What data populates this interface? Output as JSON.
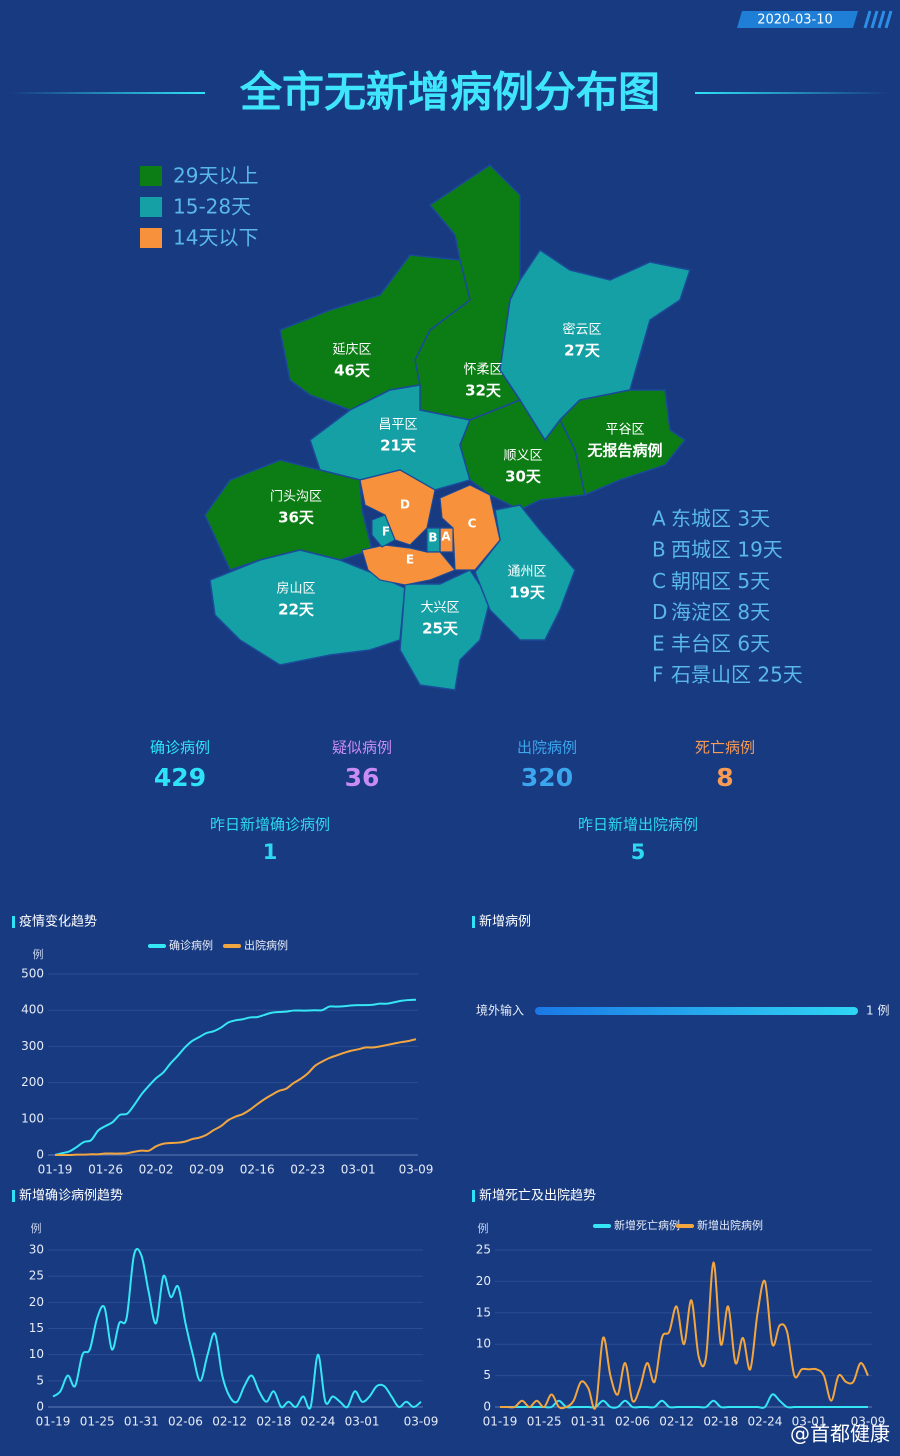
{
  "date": "2020-03-10",
  "title": "全市无新增病例分布图",
  "watermark": "@首都健康",
  "map": {
    "legend": [
      {
        "label": "29天以上",
        "color": "#0b7d14"
      },
      {
        "label": "15-28天",
        "color": "#14a0a4"
      },
      {
        "label": "14天以下",
        "color": "#f7913b"
      }
    ],
    "districts": [
      {
        "name": "怀柔区",
        "days": "32天",
        "color": "#0b7d14"
      },
      {
        "name": "延庆区",
        "days": "46天",
        "color": "#0b7d14"
      },
      {
        "name": "密云区",
        "days": "27天",
        "color": "#14a0a4"
      },
      {
        "name": "平谷区",
        "days": "无报告病例",
        "color": "#0b7d14"
      },
      {
        "name": "昌平区",
        "days": "21天",
        "color": "#14a0a4"
      },
      {
        "name": "顺义区",
        "days": "30天",
        "color": "#0b7d14"
      },
      {
        "name": "门头沟区",
        "days": "36天",
        "color": "#0b7d14"
      },
      {
        "name": "房山区",
        "days": "22天",
        "color": "#14a0a4"
      },
      {
        "name": "大兴区",
        "days": "25天",
        "color": "#14a0a4"
      },
      {
        "name": "通州区",
        "days": "19天",
        "color": "#14a0a4"
      }
    ],
    "key": [
      {
        "letter": "A",
        "text": "东城区 3天",
        "color": "#f7913b"
      },
      {
        "letter": "B",
        "text": "西城区 19天",
        "color": "#14a0a4"
      },
      {
        "letter": "C",
        "text": "朝阳区 5天",
        "color": "#f7913b"
      },
      {
        "letter": "D",
        "text": "海淀区 8天",
        "color": "#f7913b"
      },
      {
        "letter": "E",
        "text": "丰台区 6天",
        "color": "#f7913b"
      },
      {
        "letter": "F",
        "text": "石景山区 25天",
        "color": "#14a0a4"
      }
    ]
  },
  "stats": [
    {
      "label": "确诊病例",
      "value": 429,
      "color": "#2ee3f7"
    },
    {
      "label": "疑似病例",
      "value": 36,
      "color": "#c98cf7"
    },
    {
      "label": "出院病例",
      "value": 320,
      "color": "#3ba6ee"
    },
    {
      "label": "死亡病例",
      "value": 8,
      "color": "#f79b55"
    },
    {
      "label": "昨日新增确诊病例",
      "value": 1,
      "color": "#2ed8f2"
    },
    {
      "label": "昨日新增出院病例",
      "value": 5,
      "color": "#2ed8f2"
    }
  ],
  "chart_data": [
    {
      "type": "line",
      "title": "疫情变化趋势",
      "y_label": "例",
      "ylim": [
        0,
        500
      ],
      "yticks": [
        0,
        100,
        200,
        300,
        400,
        500
      ],
      "categories": [
        "01-19",
        null,
        null,
        null,
        null,
        null,
        null,
        "01-26",
        null,
        null,
        null,
        null,
        null,
        null,
        "02-02",
        null,
        null,
        null,
        null,
        null,
        null,
        "02-09",
        null,
        null,
        null,
        null,
        null,
        null,
        "02-16",
        null,
        null,
        null,
        null,
        null,
        null,
        "02-23",
        null,
        null,
        null,
        null,
        null,
        null,
        "03-01",
        null,
        null,
        null,
        null,
        null,
        null,
        null,
        "03-09"
      ],
      "series": [
        {
          "name": "确诊病例",
          "color": "#35e6f5",
          "values": [
            0,
            5,
            10,
            22,
            36,
            41,
            68,
            80,
            91,
            111,
            114,
            139,
            168,
            191,
            212,
            228,
            253,
            274,
            297,
            315,
            326,
            337,
            342,
            352,
            366,
            372,
            375,
            380,
            381,
            387,
            393,
            395,
            396,
            399,
            399,
            399,
            400,
            400,
            410,
            410,
            411,
            413,
            414,
            414,
            415,
            418,
            418,
            422,
            426,
            428,
            429
          ]
        },
        {
          "name": "出院病例",
          "color": "#f2a640",
          "values": [
            0,
            0,
            0,
            1,
            1,
            2,
            2,
            4,
            4,
            4,
            5,
            9,
            12,
            12,
            24,
            31,
            33,
            34,
            37,
            44,
            48,
            56,
            69,
            80,
            96,
            106,
            113,
            125,
            140,
            154,
            166,
            177,
            183,
            198,
            210,
            225,
            246,
            258,
            268,
            275,
            282,
            288,
            292,
            297,
            297,
            300,
            304,
            308,
            312,
            315,
            320
          ]
        }
      ]
    },
    {
      "type": "bar",
      "title": "新增病例",
      "categories": [
        "境外输入"
      ],
      "values": [
        1
      ],
      "value_labels": [
        "1 例"
      ]
    },
    {
      "type": "line",
      "title": "新增确诊病例趋势",
      "y_label": "例",
      "ylim": [
        0,
        30
      ],
      "yticks": [
        0,
        5,
        10,
        15,
        20,
        25,
        30
      ],
      "categories": [
        "01-19",
        null,
        null,
        null,
        null,
        null,
        "01-25",
        null,
        null,
        null,
        null,
        null,
        "01-31",
        null,
        null,
        null,
        null,
        null,
        "02-06",
        null,
        null,
        null,
        null,
        null,
        "02-12",
        null,
        null,
        null,
        null,
        null,
        "02-18",
        null,
        null,
        null,
        null,
        null,
        "02-24",
        null,
        null,
        null,
        null,
        null,
        "03-01",
        null,
        null,
        null,
        null,
        null,
        null,
        null,
        "03-09"
      ],
      "series": [
        {
          "name": "新增确诊病例",
          "color": "#35e6f5",
          "values": [
            2,
            3,
            6,
            4,
            10,
            11,
            17,
            19,
            11,
            16,
            17,
            29,
            29,
            22,
            16,
            25,
            21,
            23,
            16,
            10,
            5,
            10,
            14,
            6,
            2,
            1,
            4,
            6,
            3,
            1,
            3,
            0,
            1,
            0,
            2,
            0,
            10,
            1,
            2,
            1,
            0,
            3,
            1,
            2,
            4,
            4,
            2,
            0,
            1,
            0,
            1
          ]
        }
      ]
    },
    {
      "type": "line",
      "title": "新增死亡及出院趋势",
      "y_label": "例",
      "ylim": [
        0,
        25
      ],
      "yticks": [
        0,
        5,
        10,
        15,
        20,
        25
      ],
      "categories": [
        "01-19",
        null,
        null,
        null,
        null,
        null,
        "01-25",
        null,
        null,
        null,
        null,
        null,
        "01-31",
        null,
        null,
        null,
        null,
        null,
        "02-06",
        null,
        null,
        null,
        null,
        null,
        "02-12",
        null,
        null,
        null,
        null,
        null,
        "02-18",
        null,
        null,
        null,
        null,
        null,
        "02-24",
        null,
        null,
        null,
        null,
        null,
        "03-01",
        null,
        null,
        null,
        null,
        null,
        null,
        null,
        "03-09"
      ],
      "legend": true,
      "series": [
        {
          "name": "新增死亡病例",
          "color": "#35e6f5",
          "values": [
            0,
            0,
            0,
            0,
            0,
            0,
            0,
            0,
            1,
            0,
            0,
            0,
            0,
            0,
            1,
            0,
            0,
            1,
            0,
            0,
            0,
            0,
            1,
            0,
            0,
            0,
            0,
            0,
            0,
            1,
            0,
            0,
            0,
            0,
            0,
            0,
            0,
            2,
            1,
            0,
            0,
            0,
            0,
            0,
            0,
            0,
            0,
            0,
            0,
            0,
            0
          ]
        },
        {
          "name": "新增出院病例",
          "color": "#f2a640",
          "values": [
            0,
            0,
            0,
            1,
            0,
            1,
            0,
            2,
            0,
            0,
            1,
            4,
            3,
            0,
            11,
            5,
            2,
            7,
            1,
            3,
            7,
            4,
            11,
            12,
            16,
            10,
            17,
            8,
            8,
            23,
            10,
            16,
            7,
            11,
            6,
            15,
            20,
            10,
            13,
            12,
            5,
            6,
            6,
            6,
            5,
            1,
            5,
            4,
            4,
            7,
            5
          ]
        }
      ]
    }
  ]
}
